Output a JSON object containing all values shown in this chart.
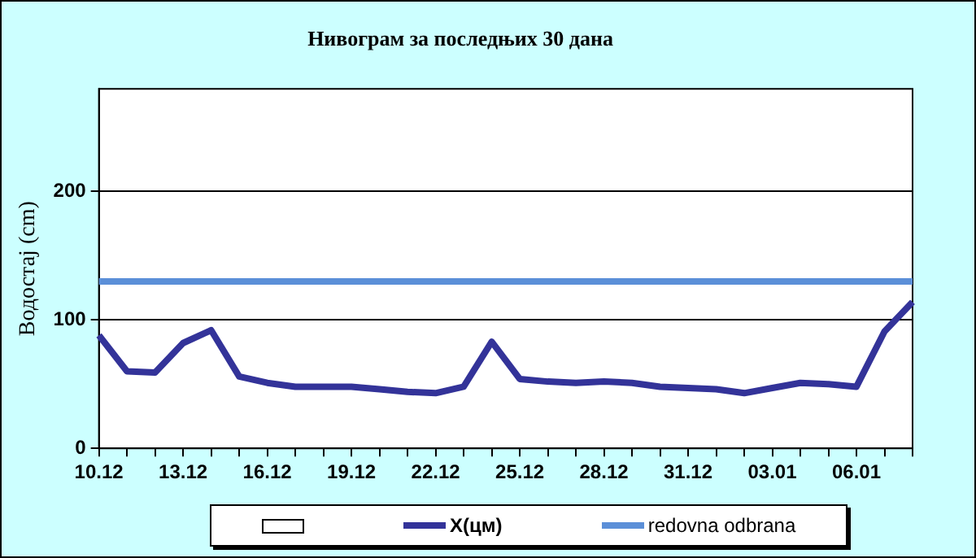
{
  "chart_data": {
    "type": "line",
    "title": "Нивограм за последњих 30 дана",
    "ylabel": "Водостај (cm)",
    "categories": [
      "10.12",
      null,
      null,
      "13.12",
      null,
      null,
      "16.12",
      null,
      null,
      "19.12",
      null,
      null,
      "22.12",
      null,
      null,
      "25.12",
      null,
      null,
      "28.12",
      null,
      null,
      "31.12",
      null,
      null,
      "03.01",
      null,
      null,
      "06.01",
      null,
      null
    ],
    "series": [
      {
        "name": "X(цм)",
        "color": "#333399",
        "values": [
          88,
          60,
          59,
          82,
          92,
          56,
          51,
          48,
          48,
          48,
          46,
          44,
          43,
          48,
          83,
          54,
          52,
          51,
          52,
          51,
          48,
          47,
          46,
          43,
          47,
          51,
          50,
          48,
          91,
          114
        ]
      }
    ],
    "ref_lines": [
      {
        "axis": "y",
        "value": 130,
        "label": "redovna odbrana",
        "color": "#5b8fd8"
      }
    ],
    "ylim": [
      0,
      280
    ],
    "yticks": [
      0,
      100,
      200
    ],
    "grid": "y",
    "legend": "bottom",
    "marker": "none",
    "line_style": "solid"
  }
}
